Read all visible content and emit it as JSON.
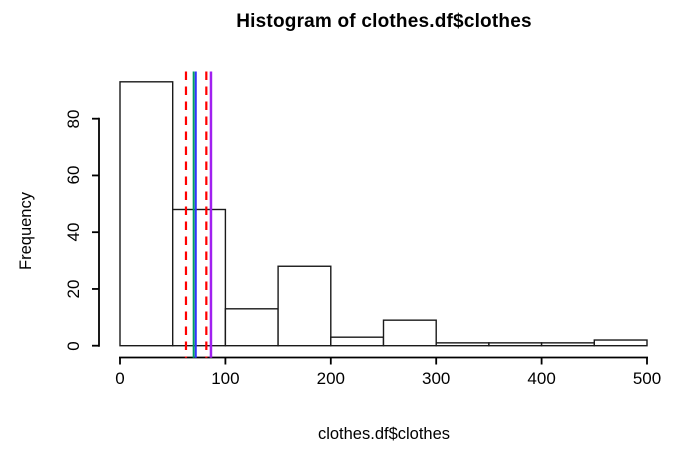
{
  "chart_data": {
    "type": "bar",
    "subtype": "histogram",
    "title": "Histogram of clothes.df$clothes",
    "xlabel": "clothes.df$clothes",
    "ylabel": "Frequency",
    "bin_edges": [
      0,
      50,
      100,
      150,
      200,
      250,
      300,
      350,
      400,
      450,
      500
    ],
    "counts": [
      93,
      48,
      13,
      28,
      3,
      9,
      1,
      1,
      1,
      2
    ],
    "x_ticks": [
      0,
      100,
      200,
      300,
      400,
      500
    ],
    "y_ticks": [
      0,
      20,
      40,
      60,
      80
    ],
    "xlim": [
      0,
      500
    ],
    "ylim": [
      0,
      93
    ],
    "grid": false,
    "legend": "none",
    "bar_fill": "#ffffff",
    "bar_stroke": "#1a1a1a",
    "axis_color": "#000000",
    "vlines": [
      {
        "name": "red-dashed-line-left",
        "x": 62.6,
        "color": "#FF0000",
        "dash": true,
        "width": 2.2
      },
      {
        "name": "green-line",
        "x": 69.9,
        "color": "#009E60",
        "dash": false,
        "width": 2.0
      },
      {
        "name": "blue-line",
        "x": 71.9,
        "color": "#3333FF",
        "dash": false,
        "width": 2.0
      },
      {
        "name": "red-dashed-line-right",
        "x": 81.9,
        "color": "#FF0000",
        "dash": true,
        "width": 2.2
      },
      {
        "name": "purple-line",
        "x": 86.3,
        "color": "#A020F0",
        "dash": false,
        "width": 2.5
      }
    ]
  }
}
